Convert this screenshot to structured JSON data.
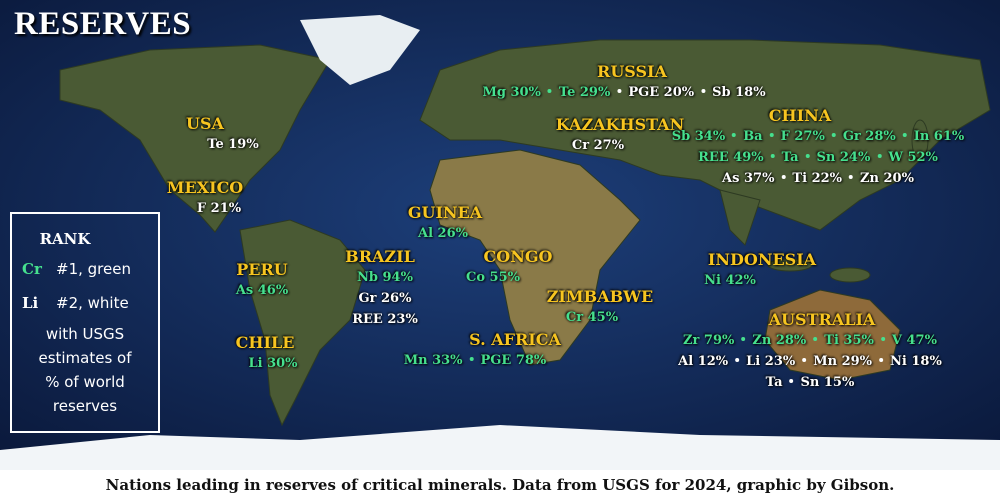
{
  "title": "RESERVES",
  "rank_colors": {
    "1": "#46e08e",
    "2": "#ffffff"
  },
  "legend": {
    "heading": "RANK",
    "items": [
      {
        "symbol": "Cr",
        "text": "#1, green",
        "rank": 1
      },
      {
        "symbol": "Li",
        "text": "#2, white",
        "rank": 2
      }
    ],
    "note": [
      "with USGS",
      "estimates of",
      "% of world",
      "reserves"
    ]
  },
  "countries": [
    {
      "name": "RUSSIA",
      "lines": [
        [
          {
            "text": "Mg 30%",
            "rank": 1
          },
          {
            "text": "Te 29%",
            "rank": 1
          },
          {
            "text": "PGE 20%",
            "rank": 2
          },
          {
            "text": "Sb 18%",
            "rank": 2
          }
        ]
      ]
    },
    {
      "name": "USA",
      "lines": [
        [
          {
            "text": "Te 19%",
            "rank": 2
          }
        ]
      ]
    },
    {
      "name": "KAZAKHSTAN",
      "lines": [
        [
          {
            "text": "Cr 27%",
            "rank": 2
          }
        ]
      ]
    },
    {
      "name": "CHINA",
      "lines": [
        [
          {
            "text": "Sb 34%",
            "rank": 1
          },
          {
            "text": "Ba",
            "rank": 1
          },
          {
            "text": "F 27%",
            "rank": 1
          },
          {
            "text": "Gr 28%",
            "rank": 1
          },
          {
            "text": "In 61%",
            "rank": 1
          }
        ],
        [
          {
            "text": "REE 49%",
            "rank": 1
          },
          {
            "text": "Ta",
            "rank": 1
          },
          {
            "text": "Sn 24%",
            "rank": 1
          },
          {
            "text": "W 52%",
            "rank": 1
          }
        ],
        [
          {
            "text": "As 37%",
            "rank": 2
          },
          {
            "text": "Ti 22%",
            "rank": 2
          },
          {
            "text": "Zn 20%",
            "rank": 2
          }
        ]
      ]
    },
    {
      "name": "MEXICO",
      "lines": [
        [
          {
            "text": "F 21%",
            "rank": 2
          }
        ]
      ]
    },
    {
      "name": "GUINEA",
      "lines": [
        [
          {
            "text": "Al 26%",
            "rank": 1
          }
        ]
      ]
    },
    {
      "name": "BRAZIL",
      "lines": [
        [
          {
            "text": "Nb 94%",
            "rank": 1
          }
        ],
        [
          {
            "text": "Gr 26%",
            "rank": 2
          }
        ],
        [
          {
            "text": "REE 23%",
            "rank": 2
          }
        ]
      ]
    },
    {
      "name": "CONGO",
      "lines": [
        [
          {
            "text": "Co 55%",
            "rank": 1
          }
        ]
      ]
    },
    {
      "name": "PERU",
      "lines": [
        [
          {
            "text": "As 46%",
            "rank": 1
          }
        ]
      ]
    },
    {
      "name": "INDONESIA",
      "lines": [
        [
          {
            "text": "Ni 42%",
            "rank": 1
          }
        ]
      ]
    },
    {
      "name": "ZIMBABWE",
      "lines": [
        [
          {
            "text": "Cr 45%",
            "rank": 1
          }
        ]
      ]
    },
    {
      "name": "AUSTRALIA",
      "lines": [
        [
          {
            "text": "Zr 79%",
            "rank": 1
          },
          {
            "text": "Zn 28%",
            "rank": 1
          },
          {
            "text": "Ti 35%",
            "rank": 1
          },
          {
            "text": "V 47%",
            "rank": 1
          }
        ],
        [
          {
            "text": "Al 12%",
            "rank": 2
          },
          {
            "text": "Li 23%",
            "rank": 2
          },
          {
            "text": "Mn 29%",
            "rank": 2
          },
          {
            "text": "Ni 18%",
            "rank": 2
          }
        ],
        [
          {
            "text": "Ta",
            "rank": 2
          },
          {
            "text": "Sn 15%",
            "rank": 2
          }
        ]
      ]
    },
    {
      "name": "CHILE",
      "lines": [
        [
          {
            "text": "Li 30%",
            "rank": 1
          }
        ]
      ]
    },
    {
      "name": "S. AFRICA",
      "lines": [
        [
          {
            "text": "Mn 33%",
            "rank": 1
          },
          {
            "text": "PGE 78%",
            "rank": 1
          }
        ]
      ]
    }
  ],
  "caption": "Nations leading in reserves of critical minerals. Data from USGS for 2024, graphic by Gibson."
}
